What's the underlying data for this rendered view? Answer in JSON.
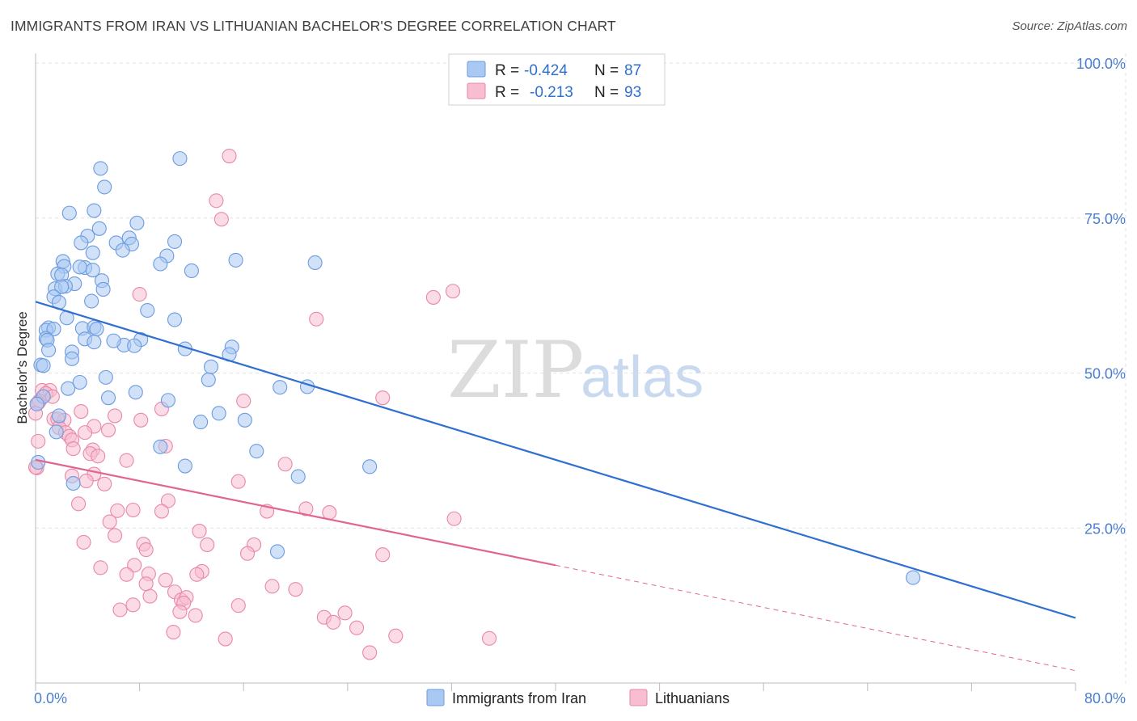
{
  "header": {
    "title": "IMMIGRANTS FROM IRAN VS LITHUANIAN BACHELOR'S DEGREE CORRELATION CHART",
    "source": "Source: ZipAtlas.com"
  },
  "watermark": {
    "zip": "ZIP",
    "atlas": "atlas"
  },
  "legend": {
    "rows": [
      {
        "r_label": "R =",
        "r_value": "-0.424",
        "n_label": "N =",
        "n_value": "87",
        "color": "#a9c8f2"
      },
      {
        "r_label": "R =",
        "r_value": "-0.213",
        "n_label": "N =",
        "n_value": "93",
        "color": "#f7bdd0"
      }
    ]
  },
  "bottom_legend": {
    "items": [
      {
        "label": "Immigrants from Iran",
        "color": "#a9c8f2"
      },
      {
        "label": "Lithuanians",
        "color": "#f7bdd0"
      }
    ]
  },
  "colors": {
    "blue_fill": "#a9c8f2",
    "blue_stroke": "#6b9be0",
    "blue_line": "#2f6fd0",
    "pink_fill": "#f7bdd0",
    "pink_stroke": "#e888a8",
    "pink_line": "#e06690",
    "grid": "#e2e2e2",
    "axis": "#bbbbbb",
    "tick_text": "#4a7fcf"
  },
  "chart_data": {
    "type": "scatter",
    "title": "IMMIGRANTS FROM IRAN VS LITHUANIAN BACHELOR'S DEGREE CORRELATION CHART",
    "xlabel": "",
    "ylabel": "Bachelor's Degree",
    "xlim": [
      0,
      80
    ],
    "ylim": [
      0,
      100
    ],
    "x_tick_labels": [
      "0.0%",
      "80.0%"
    ],
    "y_ticks": [
      25,
      50,
      75,
      100
    ],
    "y_tick_labels": [
      "25.0%",
      "50.0%",
      "75.0%",
      "100.0%"
    ],
    "series": [
      {
        "name": "Immigrants from Iran",
        "r": -0.424,
        "n": 87,
        "trend": {
          "x0": 0,
          "y0": 61.5,
          "x1": 80,
          "y1": 10.5
        },
        "points": [
          [
            11.1,
            84.6
          ],
          [
            5.0,
            83.0
          ],
          [
            5.3,
            80.0
          ],
          [
            2.6,
            75.8
          ],
          [
            4.5,
            76.2
          ],
          [
            7.8,
            74.2
          ],
          [
            4.9,
            73.3
          ],
          [
            4.0,
            72.1
          ],
          [
            3.5,
            71.0
          ],
          [
            6.2,
            71.0
          ],
          [
            7.2,
            71.8
          ],
          [
            10.7,
            71.2
          ],
          [
            7.4,
            70.8
          ],
          [
            6.7,
            69.8
          ],
          [
            4.4,
            69.4
          ],
          [
            10.1,
            68.9
          ],
          [
            15.4,
            68.2
          ],
          [
            21.5,
            67.8
          ],
          [
            3.8,
            67.0
          ],
          [
            2.1,
            68.0
          ],
          [
            2.2,
            67.2
          ],
          [
            9.6,
            67.6
          ],
          [
            4.4,
            66.6
          ],
          [
            3.4,
            67.1
          ],
          [
            12.0,
            66.5
          ],
          [
            1.7,
            66.0
          ],
          [
            2.0,
            65.8
          ],
          [
            5.1,
            64.9
          ],
          [
            3.0,
            64.4
          ],
          [
            1.5,
            63.6
          ],
          [
            2.3,
            64.0
          ],
          [
            2.0,
            63.9
          ],
          [
            5.2,
            63.5
          ],
          [
            1.4,
            62.3
          ],
          [
            4.3,
            61.6
          ],
          [
            1.8,
            61.4
          ],
          [
            8.6,
            60.1
          ],
          [
            2.4,
            58.9
          ],
          [
            10.7,
            58.6
          ],
          [
            1.0,
            57.3
          ],
          [
            3.6,
            57.2
          ],
          [
            0.8,
            56.9
          ],
          [
            4.5,
            57.4
          ],
          [
            4.7,
            57.1
          ],
          [
            1.4,
            57.1
          ],
          [
            0.8,
            55.6
          ],
          [
            0.9,
            55.3
          ],
          [
            3.8,
            55.5
          ],
          [
            8.1,
            55.4
          ],
          [
            4.5,
            55.0
          ],
          [
            6.8,
            54.5
          ],
          [
            7.6,
            54.4
          ],
          [
            1.0,
            53.7
          ],
          [
            2.8,
            53.4
          ],
          [
            11.5,
            53.9
          ],
          [
            15.1,
            54.2
          ],
          [
            14.9,
            53.0
          ],
          [
            2.8,
            52.3
          ],
          [
            0.4,
            51.3
          ],
          [
            0.6,
            51.2
          ],
          [
            13.5,
            51.0
          ],
          [
            5.4,
            49.3
          ],
          [
            13.3,
            48.9
          ],
          [
            3.4,
            48.5
          ],
          [
            18.8,
            47.7
          ],
          [
            20.9,
            47.8
          ],
          [
            2.5,
            47.5
          ],
          [
            7.7,
            46.9
          ],
          [
            0.6,
            46.2
          ],
          [
            5.6,
            46.0
          ],
          [
            10.2,
            45.6
          ],
          [
            0.1,
            45.0
          ],
          [
            14.1,
            43.5
          ],
          [
            1.8,
            43.1
          ],
          [
            12.7,
            42.1
          ],
          [
            16.1,
            42.4
          ],
          [
            1.6,
            40.5
          ],
          [
            9.6,
            38.1
          ],
          [
            17.0,
            37.4
          ],
          [
            11.5,
            35.0
          ],
          [
            25.7,
            34.9
          ],
          [
            20.2,
            33.3
          ],
          [
            2.9,
            32.2
          ],
          [
            18.6,
            21.2
          ],
          [
            67.5,
            17.0
          ],
          [
            0.2,
            35.6
          ],
          [
            6.0,
            55.2
          ]
        ]
      },
      {
        "name": "Lithuanians",
        "r": -0.213,
        "n": 93,
        "trend": {
          "x0": 0,
          "y0": 36.0,
          "x1": 40,
          "y1": 19.0,
          "dash_x1": 80,
          "dash_y1": 2.0
        },
        "points": [
          [
            14.9,
            85.0
          ],
          [
            13.9,
            77.8
          ],
          [
            14.3,
            74.8
          ],
          [
            32.1,
            63.2
          ],
          [
            30.6,
            62.2
          ],
          [
            8.0,
            62.7
          ],
          [
            21.6,
            58.7
          ],
          [
            0.5,
            47.2
          ],
          [
            1.1,
            47.2
          ],
          [
            0.8,
            46.7
          ],
          [
            1.3,
            46.2
          ],
          [
            0.3,
            45.5
          ],
          [
            26.7,
            46.0
          ],
          [
            16.0,
            45.5
          ],
          [
            3.5,
            43.8
          ],
          [
            9.7,
            44.2
          ],
          [
            1.4,
            42.6
          ],
          [
            2.2,
            42.4
          ],
          [
            1.7,
            42.6
          ],
          [
            6.1,
            43.1
          ],
          [
            8.1,
            42.4
          ],
          [
            1.8,
            41.2
          ],
          [
            2.3,
            40.4
          ],
          [
            4.5,
            41.4
          ],
          [
            5.6,
            40.8
          ],
          [
            2.6,
            39.8
          ],
          [
            2.8,
            39.2
          ],
          [
            3.8,
            40.4
          ],
          [
            0.2,
            39.0
          ],
          [
            10.0,
            38.2
          ],
          [
            4.4,
            37.6
          ],
          [
            2.9,
            37.8
          ],
          [
            4.2,
            37.0
          ],
          [
            4.8,
            36.6
          ],
          [
            7.0,
            35.9
          ],
          [
            19.2,
            35.3
          ],
          [
            0.1,
            34.7
          ],
          [
            4.5,
            33.7
          ],
          [
            2.8,
            33.4
          ],
          [
            3.9,
            32.6
          ],
          [
            5.3,
            32.1
          ],
          [
            15.6,
            32.5
          ],
          [
            10.2,
            29.4
          ],
          [
            3.3,
            28.9
          ],
          [
            6.3,
            27.8
          ],
          [
            7.5,
            27.9
          ],
          [
            9.7,
            27.7
          ],
          [
            17.8,
            27.7
          ],
          [
            20.8,
            28.1
          ],
          [
            22.6,
            27.5
          ],
          [
            32.2,
            26.5
          ],
          [
            5.7,
            26.0
          ],
          [
            12.6,
            24.5
          ],
          [
            6.1,
            23.8
          ],
          [
            3.7,
            22.7
          ],
          [
            8.3,
            22.4
          ],
          [
            13.2,
            22.3
          ],
          [
            16.8,
            22.3
          ],
          [
            8.5,
            21.5
          ],
          [
            16.3,
            20.9
          ],
          [
            26.7,
            20.7
          ],
          [
            7.6,
            19.0
          ],
          [
            5.0,
            18.6
          ],
          [
            12.8,
            18.0
          ],
          [
            7.0,
            17.5
          ],
          [
            8.7,
            17.6
          ],
          [
            12.4,
            17.5
          ],
          [
            10.0,
            16.6
          ],
          [
            18.2,
            15.6
          ],
          [
            20.0,
            15.1
          ],
          [
            10.7,
            14.7
          ],
          [
            8.8,
            14.0
          ],
          [
            11.2,
            13.4
          ],
          [
            11.6,
            13.8
          ],
          [
            11.4,
            12.9
          ],
          [
            7.5,
            12.6
          ],
          [
            6.5,
            11.8
          ],
          [
            15.6,
            12.5
          ],
          [
            11.1,
            11.5
          ],
          [
            12.3,
            10.9
          ],
          [
            22.2,
            10.6
          ],
          [
            23.8,
            11.3
          ],
          [
            22.9,
            9.8
          ],
          [
            24.7,
            8.9
          ],
          [
            10.6,
            8.2
          ],
          [
            27.7,
            7.6
          ],
          [
            14.6,
            7.1
          ],
          [
            34.9,
            7.2
          ],
          [
            25.7,
            4.9
          ],
          [
            8.5,
            16.0
          ],
          [
            0.2,
            45.2
          ],
          [
            0.0,
            43.5
          ],
          [
            0.0,
            34.8
          ]
        ]
      }
    ]
  }
}
